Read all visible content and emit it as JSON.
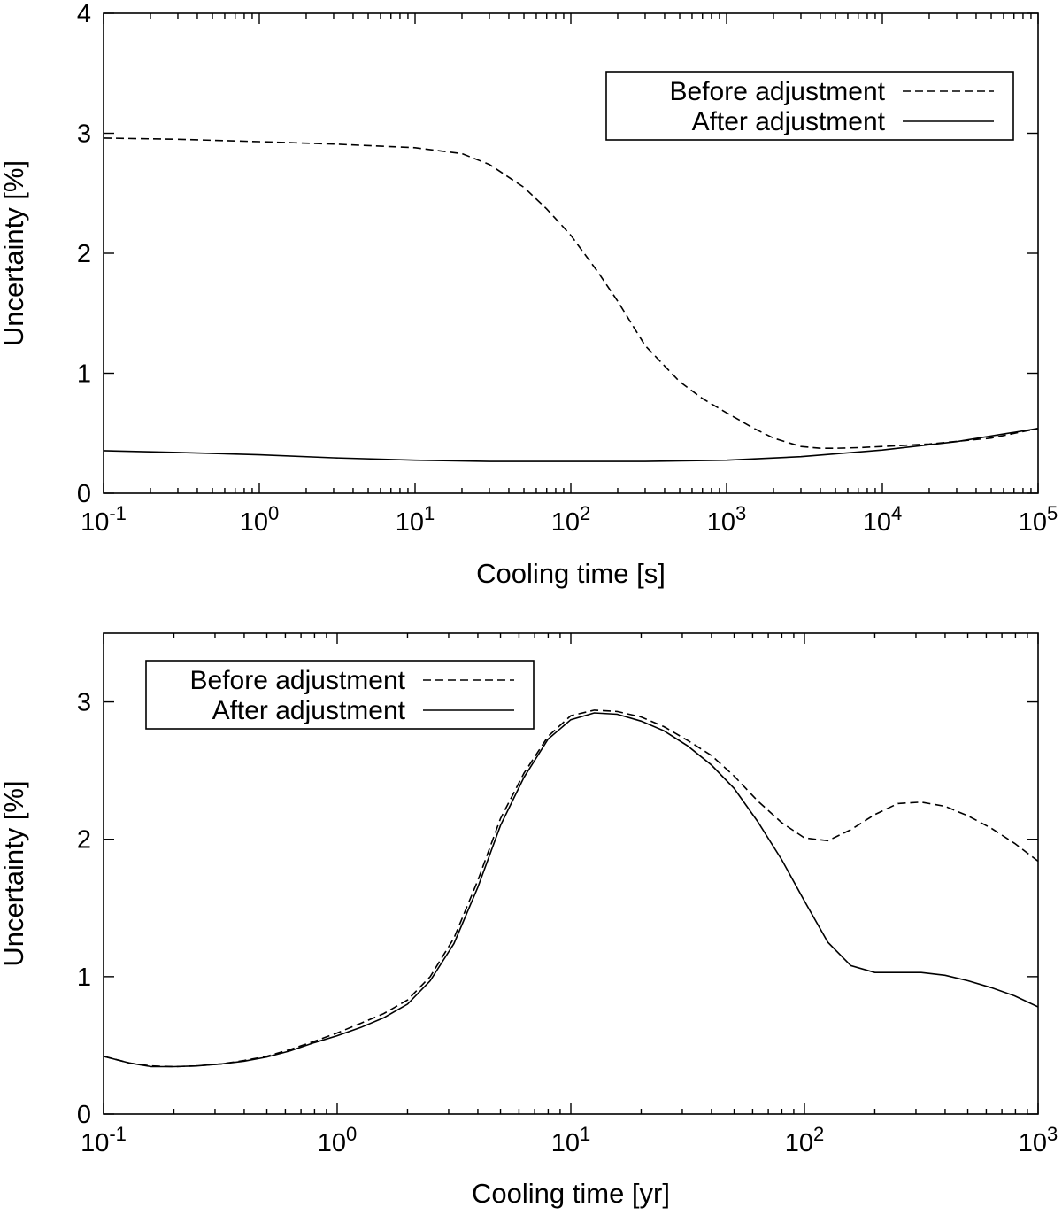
{
  "chart_data": [
    {
      "type": "line",
      "x_scale": "log",
      "xlabel": "Cooling time [s]",
      "ylabel": "Uncertainty [%]",
      "xlim": [
        0.1,
        100000
      ],
      "ylim": [
        0,
        4
      ],
      "x_ticks": [
        {
          "value": 0.1,
          "base": "10",
          "exp": "-1"
        },
        {
          "value": 1,
          "base": "10",
          "exp": "0"
        },
        {
          "value": 10,
          "base": "10",
          "exp": "1"
        },
        {
          "value": 100,
          "base": "10",
          "exp": "2"
        },
        {
          "value": 1000,
          "base": "10",
          "exp": "3"
        },
        {
          "value": 10000,
          "base": "10",
          "exp": "4"
        },
        {
          "value": 100000,
          "base": "10",
          "exp": "5"
        }
      ],
      "y_ticks": [
        {
          "value": 0,
          "label": "0"
        },
        {
          "value": 1,
          "label": "1"
        },
        {
          "value": 2,
          "label": "2"
        },
        {
          "value": 3,
          "label": "3"
        },
        {
          "value": 4,
          "label": "4"
        }
      ],
      "grid": false,
      "legend_position": "top-right",
      "series": [
        {
          "name": "Before adjustment",
          "style": "dashed",
          "x": [
            0.1,
            0.3,
            1,
            3,
            10,
            20,
            30,
            50,
            70,
            100,
            150,
            200,
            300,
            500,
            700,
            1000,
            1500,
            2000,
            3000,
            4000,
            5000,
            7000,
            10000,
            20000,
            50000,
            100000
          ],
          "y": [
            2.96,
            2.95,
            2.93,
            2.91,
            2.88,
            2.83,
            2.74,
            2.55,
            2.37,
            2.15,
            1.84,
            1.6,
            1.23,
            0.93,
            0.79,
            0.67,
            0.54,
            0.46,
            0.39,
            0.375,
            0.375,
            0.38,
            0.39,
            0.41,
            0.46,
            0.54
          ]
        },
        {
          "name": "After adjustment",
          "style": "solid",
          "x": [
            0.1,
            0.3,
            1,
            3,
            10,
            30,
            100,
            300,
            1000,
            3000,
            10000,
            30000,
            100000
          ],
          "y": [
            0.355,
            0.34,
            0.32,
            0.295,
            0.275,
            0.265,
            0.265,
            0.265,
            0.275,
            0.305,
            0.36,
            0.43,
            0.54
          ]
        }
      ]
    },
    {
      "type": "line",
      "x_scale": "log",
      "xlabel": "Cooling time [yr]",
      "ylabel": "Uncertainty [%]",
      "xlim": [
        0.1,
        1000
      ],
      "ylim": [
        0,
        3.5
      ],
      "x_ticks": [
        {
          "value": 0.1,
          "base": "10",
          "exp": "-1"
        },
        {
          "value": 1,
          "base": "10",
          "exp": "0"
        },
        {
          "value": 10,
          "base": "10",
          "exp": "1"
        },
        {
          "value": 100,
          "base": "10",
          "exp": "2"
        },
        {
          "value": 1000,
          "base": "10",
          "exp": "3"
        }
      ],
      "y_ticks": [
        {
          "value": 0,
          "label": "0"
        },
        {
          "value": 1,
          "label": "1"
        },
        {
          "value": 2,
          "label": "2"
        },
        {
          "value": 3,
          "label": "3"
        }
      ],
      "grid": false,
      "legend_position": "top-left",
      "series": [
        {
          "name": "Before adjustment",
          "style": "dashed",
          "x": [
            0.1,
            0.13,
            0.16,
            0.2,
            0.25,
            0.32,
            0.4,
            0.5,
            0.63,
            0.8,
            1,
            1.26,
            1.58,
            2,
            2.5,
            3.16,
            4,
            5,
            6.3,
            8,
            10,
            12.6,
            15.8,
            20,
            25,
            31.6,
            40,
            50,
            63,
            80,
            100,
            126,
            158,
            200,
            251,
            316,
            400,
            501,
            631,
            794,
            1000
          ],
          "y": [
            0.42,
            0.37,
            0.35,
            0.345,
            0.35,
            0.365,
            0.39,
            0.42,
            0.47,
            0.53,
            0.59,
            0.66,
            0.73,
            0.83,
            1.0,
            1.28,
            1.7,
            2.15,
            2.48,
            2.75,
            2.9,
            2.94,
            2.93,
            2.89,
            2.82,
            2.72,
            2.61,
            2.46,
            2.28,
            2.12,
            2.01,
            1.99,
            2.07,
            2.18,
            2.26,
            2.27,
            2.24,
            2.17,
            2.08,
            1.97,
            1.84
          ]
        },
        {
          "name": "After adjustment",
          "style": "solid",
          "x": [
            0.1,
            0.13,
            0.16,
            0.2,
            0.25,
            0.32,
            0.4,
            0.5,
            0.63,
            0.8,
            1,
            1.26,
            1.58,
            2,
            2.5,
            3.16,
            4,
            5,
            6.3,
            8,
            10,
            12.6,
            15.8,
            20,
            25,
            31.6,
            40,
            50,
            63,
            80,
            100,
            126,
            158,
            200,
            251,
            316,
            400,
            501,
            631,
            794,
            1000
          ],
          "y": [
            0.42,
            0.37,
            0.345,
            0.345,
            0.35,
            0.365,
            0.385,
            0.415,
            0.46,
            0.52,
            0.57,
            0.63,
            0.7,
            0.8,
            0.97,
            1.24,
            1.65,
            2.1,
            2.45,
            2.73,
            2.87,
            2.92,
            2.91,
            2.86,
            2.79,
            2.68,
            2.54,
            2.37,
            2.13,
            1.85,
            1.55,
            1.25,
            1.08,
            1.03,
            1.03,
            1.03,
            1.01,
            0.97,
            0.92,
            0.86,
            0.78
          ]
        }
      ]
    }
  ]
}
